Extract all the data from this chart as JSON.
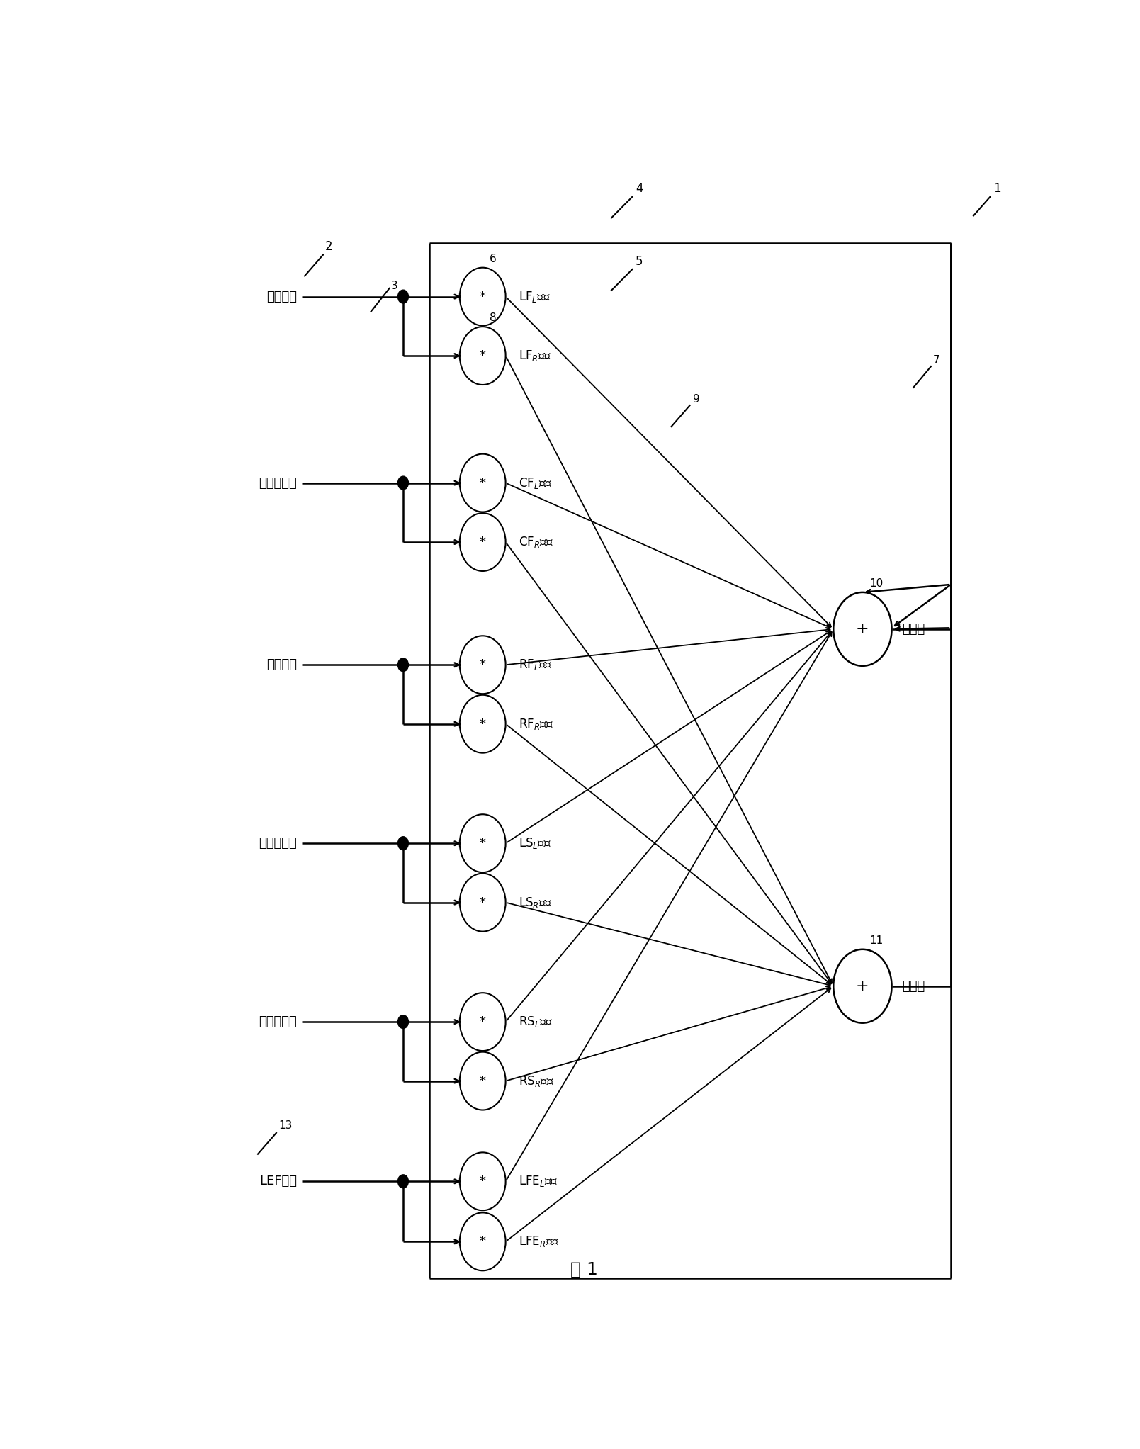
{
  "bg_color": "#ffffff",
  "line_color": "#000000",
  "fig_width": 16.09,
  "fig_height": 20.45,
  "title": "图 1",
  "channel_names": [
    "左前声道",
    "中央前声道",
    "右前声道",
    "左环绕声道",
    "右环绕声道",
    "LEF声道"
  ],
  "mult_labels": [
    "LF$_L$脉冲",
    "LF$_R$脉冲",
    "CF$_L$脉冲",
    "CF$_R$脉冲",
    "RF$_L$脉冲",
    "RF$_R$脉冲",
    "LS$_L$脉冲",
    "LS$_R$脉冲",
    "RS$_L$脉冲",
    "RS$_R$脉冲",
    "LFE$_L$脉冲",
    "LFE$_R$脉冲"
  ],
  "circle_ids": [
    "6",
    "8",
    "",
    "",
    "",
    "",
    "",
    "",
    "",
    "",
    "",
    ""
  ],
  "sum_labels": [
    "左声道",
    "右声道"
  ],
  "sum_ids": [
    "10",
    "11"
  ]
}
